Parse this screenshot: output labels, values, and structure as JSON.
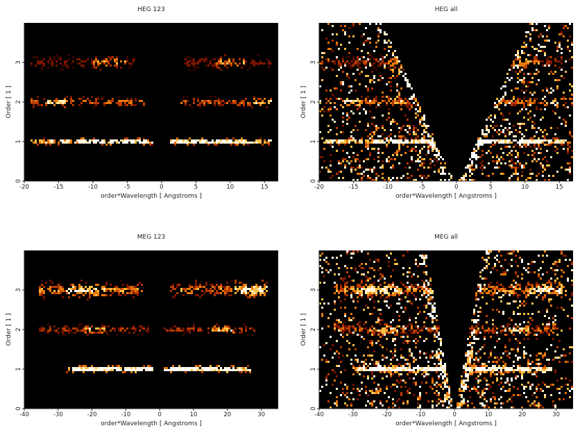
{
  "colors": {
    "background": "#000000",
    "text": "#222222",
    "axis": "#222222",
    "colormap": [
      "#000000",
      "#3a0500",
      "#7a1500",
      "#b83a00",
      "#e8780a",
      "#ffc048",
      "#fff0c8",
      "#ffffff"
    ]
  },
  "chart_data": [
    {
      "id": "heg123",
      "type": "heatmap",
      "title": "HEG 123",
      "xlabel": "order*Wavelength [ Angstroms ]",
      "ylabel": "Order [ 1 ]",
      "xlim": [
        -20,
        17
      ],
      "ylim": [
        0,
        4
      ],
      "xticks": [
        -20,
        -15,
        -10,
        -5,
        0,
        5,
        10,
        15
      ],
      "yticks": [
        0,
        1,
        2,
        3
      ],
      "bands": [
        {
          "order": 1,
          "x": [
            -19,
            -1.3
          ],
          "spread": 0.04,
          "intensity": 0.95,
          "core": [
            -12,
            -2
          ]
        },
        {
          "order": 1,
          "x": [
            1.3,
            16
          ],
          "spread": 0.04,
          "intensity": 0.95,
          "core": [
            2,
            12
          ]
        },
        {
          "order": 2,
          "x": [
            -19,
            -2.5
          ],
          "spread": 0.07,
          "intensity": 0.55,
          "core": [
            -17,
            -14
          ]
        },
        {
          "order": 2,
          "x": [
            2.5,
            16
          ],
          "spread": 0.07,
          "intensity": 0.5,
          "core": [
            13,
            16
          ]
        },
        {
          "order": 3,
          "x": [
            -19,
            -3.5
          ],
          "spread": 0.09,
          "intensity": 0.3,
          "core": [
            -10,
            -5
          ]
        },
        {
          "order": 3,
          "x": [
            3.5,
            16
          ],
          "spread": 0.09,
          "intensity": 0.3,
          "core": [
            8,
            12
          ]
        }
      ],
      "background_noise": 0.0,
      "wedges": false
    },
    {
      "id": "hegall",
      "type": "heatmap",
      "title": "HEG all",
      "xlabel": "order*Wavelength [ Angstroms ]",
      "ylabel": "Order [ 1 ]",
      "xlim": [
        -20,
        17
      ],
      "ylim": [
        0,
        4
      ],
      "xticks": [
        -20,
        -15,
        -10,
        -5,
        0,
        5,
        10,
        15
      ],
      "yticks": [
        0,
        1,
        2,
        3
      ],
      "bands": [
        {
          "order": 1,
          "x": [
            -19,
            -1.3
          ],
          "spread": 0.04,
          "intensity": 0.95,
          "core": [
            -12,
            -2
          ]
        },
        {
          "order": 1,
          "x": [
            1.3,
            16
          ],
          "spread": 0.04,
          "intensity": 0.95,
          "core": [
            2,
            12
          ]
        },
        {
          "order": 2,
          "x": [
            -19,
            -2.5
          ],
          "spread": 0.07,
          "intensity": 0.6,
          "core": [
            -17,
            -14
          ]
        },
        {
          "order": 2,
          "x": [
            2.5,
            16
          ],
          "spread": 0.07,
          "intensity": 0.55,
          "core": [
            13,
            16
          ]
        },
        {
          "order": 3,
          "x": [
            -19,
            -3.5
          ],
          "spread": 0.09,
          "intensity": 0.35,
          "core": [
            -10,
            -5
          ]
        },
        {
          "order": 3,
          "x": [
            3.5,
            16
          ],
          "spread": 0.09,
          "intensity": 0.35,
          "core": [
            8,
            12
          ]
        }
      ],
      "background_noise": 0.13,
      "wedges": true,
      "wedge_slope": 0.28,
      "lower_box": {
        "x": [
          -13,
          13
        ],
        "y": [
          0,
          1.45
        ]
      }
    },
    {
      "id": "meg123",
      "type": "heatmap",
      "title": "MEG 123",
      "xlabel": "order*Wavelength [ Angstroms ]",
      "ylabel": "Order [ 1 ]",
      "xlim": [
        -40,
        35
      ],
      "ylim": [
        0,
        4
      ],
      "xticks": [
        -40,
        -30,
        -20,
        -10,
        0,
        10,
        20,
        30
      ],
      "yticks": [
        0,
        1,
        2,
        3
      ],
      "bands": [
        {
          "order": 1,
          "x": [
            -28,
            -2
          ],
          "spread": 0.05,
          "intensity": 0.95,
          "core": [
            -25,
            -5
          ]
        },
        {
          "order": 1,
          "x": [
            1,
            27
          ],
          "spread": 0.05,
          "intensity": 0.95,
          "core": [
            3,
            22
          ]
        },
        {
          "order": 2,
          "x": [
            -36,
            -3
          ],
          "spread": 0.07,
          "intensity": 0.4,
          "core": [
            -22,
            -16
          ]
        },
        {
          "order": 2,
          "x": [
            1,
            28
          ],
          "spread": 0.07,
          "intensity": 0.4,
          "core": [
            15,
            22
          ]
        },
        {
          "order": 3,
          "x": [
            -36,
            -5
          ],
          "spread": 0.1,
          "intensity": 0.6,
          "core": [
            -28,
            -16
          ]
        },
        {
          "order": 3,
          "x": [
            3,
            32
          ],
          "spread": 0.1,
          "intensity": 0.6,
          "core": [
            22,
            32
          ]
        }
      ],
      "background_noise": 0.0,
      "wedges": false
    },
    {
      "id": "megall",
      "type": "heatmap",
      "title": "MEG all",
      "xlabel": "order*Wavelength [ Angstroms ]",
      "ylabel": "Order [ 1 ]",
      "xlim": [
        -40,
        35
      ],
      "ylim": [
        0,
        4
      ],
      "xticks": [
        -40,
        -30,
        -20,
        -10,
        0,
        10,
        20,
        30
      ],
      "yticks": [
        0,
        1,
        2,
        3
      ],
      "bands": [
        {
          "order": 1,
          "x": [
            -30,
            -2
          ],
          "spread": 0.05,
          "intensity": 0.95,
          "core": [
            -25,
            -5
          ]
        },
        {
          "order": 1,
          "x": [
            1,
            28
          ],
          "spread": 0.05,
          "intensity": 0.95,
          "core": [
            3,
            22
          ]
        },
        {
          "order": 2,
          "x": [
            -36,
            -3
          ],
          "spread": 0.08,
          "intensity": 0.5,
          "core": [
            -22,
            -16
          ]
        },
        {
          "order": 2,
          "x": [
            1,
            30
          ],
          "spread": 0.08,
          "intensity": 0.5,
          "core": [
            15,
            22
          ]
        },
        {
          "order": 3,
          "x": [
            -36,
            -5
          ],
          "spread": 0.1,
          "intensity": 0.65,
          "core": [
            -28,
            -16
          ]
        },
        {
          "order": 3,
          "x": [
            3,
            32
          ],
          "spread": 0.1,
          "intensity": 0.65,
          "core": [
            22,
            32
          ]
        }
      ],
      "background_noise": 0.13,
      "wedges": true,
      "wedge_slope": 0.11,
      "lower_box": {
        "x": [
          -27,
          27
        ],
        "y": [
          0,
          1.45
        ]
      }
    }
  ]
}
